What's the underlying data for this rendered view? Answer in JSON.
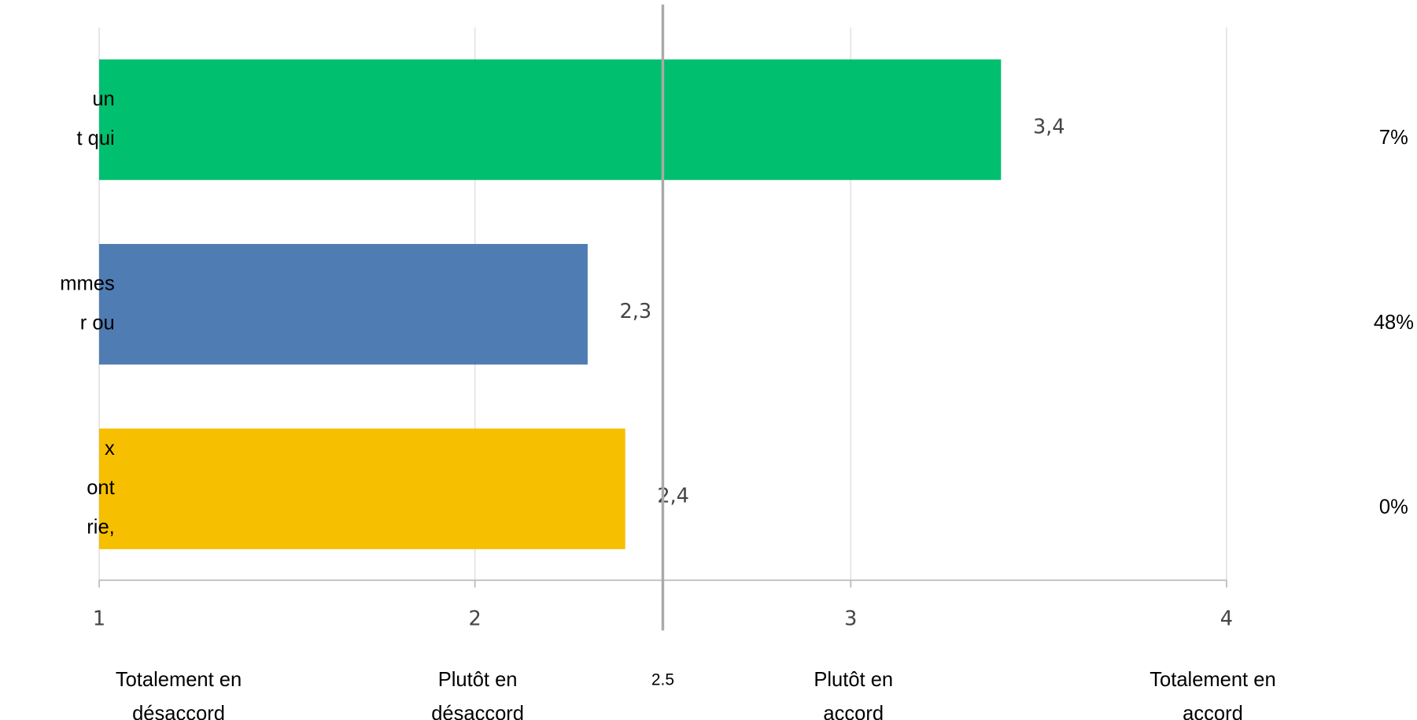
{
  "chart_data": {
    "type": "bar",
    "orientation": "horizontal",
    "categories": [
      [
        "un",
        "t qui"
      ],
      [
        "mmes",
        "r ou"
      ],
      [
        "x",
        "ont",
        "rie,"
      ]
    ],
    "values": [
      3.4,
      2.3,
      2.4
    ],
    "value_labels": [
      "3,4",
      "2,3",
      "2,4"
    ],
    "colors": [
      "#00bf6f",
      "#4f7cb3",
      "#f6bf00"
    ],
    "xlim": [
      1,
      4
    ],
    "xticks": [
      1,
      2,
      3,
      4
    ],
    "tick_descriptions": [
      [
        "Totalement en",
        "désaccord"
      ],
      [
        "Plutôt en",
        "désaccord"
      ],
      [
        "Plutôt en",
        "accord"
      ],
      [
        "Totalement en",
        "accord"
      ]
    ],
    "reference_line": {
      "value": 2.5,
      "label": "2.5"
    },
    "shares": {
      "values": [
        7,
        48,
        0
      ],
      "value_labels": [
        "7%",
        "48%",
        "0%"
      ]
    },
    "grid": true
  }
}
